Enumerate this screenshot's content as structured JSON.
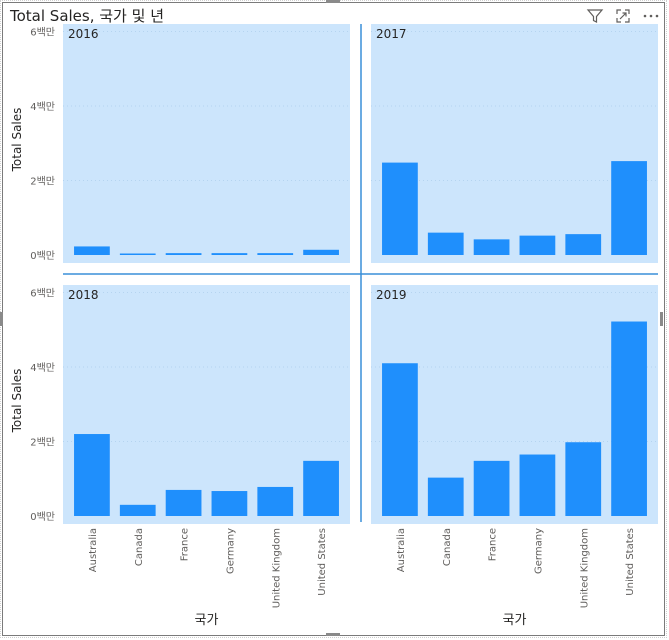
{
  "visual": {
    "title": "Total Sales, 국가 및 년",
    "icons": [
      "filter-icon",
      "focus-mode-icon",
      "more-options-icon"
    ]
  },
  "colors": {
    "bar": "#1f8ffc",
    "panel": "#cce5fc",
    "divider": "#3a8fd8",
    "axis_text": "#605e5c"
  },
  "chart_data": {
    "type": "bar",
    "layout": "small-multiples-2x2",
    "ylabel": "Total Sales",
    "xlabel": "국가",
    "yticks": [
      0,
      2,
      4,
      6
    ],
    "ytick_labels": [
      "0백만",
      "2백만",
      "4백만",
      "6백만"
    ],
    "ytick_unit": "백만",
    "ylim": [
      0,
      6.2
    ],
    "grid": true,
    "categories": [
      "Australia",
      "Canada",
      "France",
      "Germany",
      "United Kingdom",
      "United States"
    ],
    "panels": [
      {
        "name": "2016",
        "values": [
          0.23,
          0.03,
          0.05,
          0.05,
          0.05,
          0.14
        ]
      },
      {
        "name": "2017",
        "values": [
          2.48,
          0.6,
          0.42,
          0.52,
          0.56,
          2.52
        ]
      },
      {
        "name": "2018",
        "values": [
          2.2,
          0.3,
          0.7,
          0.67,
          0.78,
          1.48
        ]
      },
      {
        "name": "2019",
        "values": [
          4.1,
          1.03,
          1.48,
          1.65,
          1.98,
          5.22
        ]
      }
    ]
  }
}
